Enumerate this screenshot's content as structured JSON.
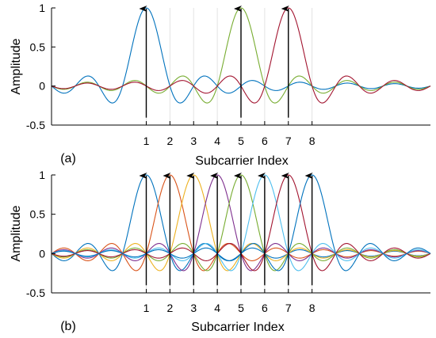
{
  "chart_data": [
    {
      "type": "line",
      "panel_label": "(a)",
      "title": "",
      "xlabel": "Subcarrier Index",
      "ylabel": "Amplitude",
      "ylim": [
        -0.5,
        1
      ],
      "yticks": [
        -0.5,
        0,
        0.5,
        1
      ],
      "ytick_labels": [
        "-0.5",
        "0",
        "0.5",
        "1"
      ],
      "xticks": [
        1,
        2,
        3,
        4,
        5,
        6,
        7,
        8
      ],
      "xtick_labels": [
        "1",
        "2",
        "3",
        "4",
        "5",
        "6",
        "7",
        "8"
      ],
      "xlim": [
        -3.0,
        13.0
      ],
      "grid": "vertical lines at subcarrier indices",
      "legend": "none",
      "curve_model": "sinc centered at each subcarrier index",
      "series": [
        {
          "center": 1,
          "color": "#0072BD"
        },
        {
          "center": 5,
          "color": "#77AC30"
        },
        {
          "center": 7,
          "color": "#A2142F"
        }
      ],
      "arrows": [
        {
          "x": 1,
          "y": 1
        },
        {
          "x": 5,
          "y": 1
        },
        {
          "x": 7,
          "y": 1
        }
      ]
    },
    {
      "type": "line",
      "panel_label": "(b)",
      "title": "",
      "xlabel": "Subcarrier Index",
      "ylabel": "Amplitude",
      "ylim": [
        -0.5,
        1
      ],
      "yticks": [
        -0.5,
        0,
        0.5,
        1
      ],
      "ytick_labels": [
        "-0.5",
        "0",
        "0.5",
        "1"
      ],
      "xticks": [
        1,
        2,
        3,
        4,
        5,
        6,
        7,
        8
      ],
      "xtick_labels": [
        "1",
        "2",
        "3",
        "4",
        "5",
        "6",
        "7",
        "8"
      ],
      "xlim": [
        -3.0,
        13.0
      ],
      "grid": "vertical lines at subcarrier indices",
      "legend": "none",
      "curve_model": "sinc centered at each subcarrier index",
      "series": [
        {
          "center": 1,
          "color": "#0072BD"
        },
        {
          "center": 2,
          "color": "#D95319"
        },
        {
          "center": 3,
          "color": "#EDB120"
        },
        {
          "center": 4,
          "color": "#7E2F8E"
        },
        {
          "center": 5,
          "color": "#77AC30"
        },
        {
          "center": 6,
          "color": "#4DBEEE"
        },
        {
          "center": 7,
          "color": "#A2142F"
        },
        {
          "center": 8,
          "color": "#0072BD"
        }
      ],
      "arrows": [
        {
          "x": 1,
          "y": 1
        },
        {
          "x": 2,
          "y": 1
        },
        {
          "x": 3,
          "y": 1
        },
        {
          "x": 4,
          "y": 1
        },
        {
          "x": 5,
          "y": 1
        },
        {
          "x": 6,
          "y": 1
        },
        {
          "x": 7,
          "y": 1
        },
        {
          "x": 8,
          "y": 1
        }
      ]
    }
  ]
}
